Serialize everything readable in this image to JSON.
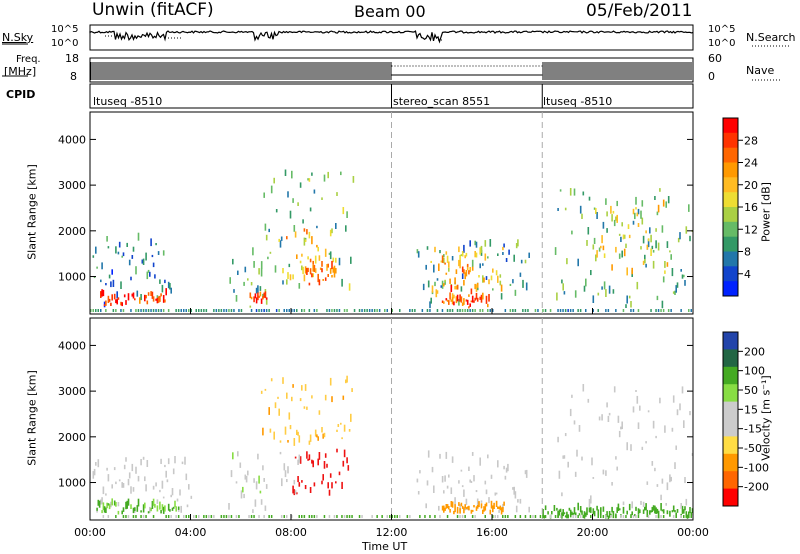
{
  "header": {
    "station": "Unwin (fitACF)",
    "beam": "Beam 00",
    "date": "05/Feb/2011"
  },
  "top_panel": {
    "nsky_label": "N.Sky",
    "nsky_ticks": [
      "10^5",
      "10^0"
    ],
    "nsearch_label": "N.Search",
    "nsearch_ticks": [
      "10^5",
      "10^0"
    ],
    "freq_label": "Freq.",
    "freq_unit": "[MHz]",
    "freq_ticks": [
      "18",
      "8"
    ],
    "nave_label": "Nave",
    "nave_ticks": [
      "60",
      "0"
    ],
    "cpid_label": "CPID",
    "cpid_segments": [
      {
        "label": "ltuseq -8510",
        "start_hour": 0,
        "end_hour": 12
      },
      {
        "label": "stereo_scan 8551",
        "start_hour": 12,
        "end_hour": 18
      },
      {
        "label": "ltuseq -8510",
        "start_hour": 18,
        "end_hour": 24
      }
    ]
  },
  "axes": {
    "xlabel": "Time UT",
    "xticks": [
      "00:00",
      "04:00",
      "08:00",
      "12:00",
      "16:00",
      "20:00",
      "00:00"
    ],
    "ylabel_power": "Slant Range [km]",
    "ylabel_velocity": "Slant Range [km]",
    "yticks": [
      "4000",
      "3000",
      "2000",
      "1000"
    ]
  },
  "colorbars": {
    "power": {
      "title": "Power [dB]",
      "ticks": [
        "28",
        "24",
        "20",
        "16",
        "12",
        "8",
        "4"
      ],
      "colors": [
        "#ff0000",
        "#ff3300",
        "#ff6600",
        "#ff9900",
        "#ffbb22",
        "#eedd33",
        "#aad044",
        "#66bb66",
        "#339966",
        "#2277aa",
        "#1144cc",
        "#0022ff"
      ]
    },
    "velocity": {
      "title": "Velocity [m s⁻¹]",
      "ticks": [
        "200",
        "100",
        "50",
        "15",
        "-15",
        "-50",
        "-100",
        "-200"
      ],
      "colors": [
        "#2244aa",
        "#226644",
        "#44aa22",
        "#88dd44",
        "#cccccc",
        "#cccccc",
        "#ffdd44",
        "#ff9900",
        "#ff6600",
        "#ff0000"
      ]
    }
  },
  "chart_data": [
    {
      "type": "heatmap",
      "title": "Power [dB]",
      "xlabel": "Time UT",
      "ylabel": "Slant Range [km]",
      "x_range_hours": [
        0,
        24
      ],
      "ylim": [
        180,
        4600
      ],
      "regions": [
        {
          "t0": 0.1,
          "t1": 3.3,
          "r0": 300,
          "r1": 1800,
          "p": 6
        },
        {
          "t0": 0.4,
          "t1": 3.0,
          "r0": 350,
          "r1": 600,
          "p": 28
        },
        {
          "t0": 5.5,
          "t1": 7.0,
          "r0": 300,
          "r1": 1500,
          "p": 9
        },
        {
          "t0": 6.3,
          "t1": 7.0,
          "r0": 400,
          "r1": 600,
          "p": 27
        },
        {
          "t0": 6.8,
          "t1": 10.5,
          "r0": 600,
          "r1": 3300,
          "p": 11
        },
        {
          "t0": 7.5,
          "t1": 9.8,
          "r0": 900,
          "r1": 2000,
          "p": 20
        },
        {
          "t0": 8.5,
          "t1": 9.8,
          "r0": 800,
          "r1": 1200,
          "p": 24
        },
        {
          "t0": 13.0,
          "t1": 17.5,
          "r0": 300,
          "r1": 1700,
          "p": 8
        },
        {
          "t0": 13.5,
          "t1": 16.5,
          "r0": 500,
          "r1": 1600,
          "p": 18
        },
        {
          "t0": 14.0,
          "t1": 15.5,
          "r0": 600,
          "r1": 1300,
          "p": 24
        },
        {
          "t0": 14.0,
          "t1": 16.0,
          "r0": 300,
          "r1": 500,
          "p": 26
        },
        {
          "t0": 18.5,
          "t1": 24.0,
          "r0": 300,
          "r1": 2900,
          "p": 10
        },
        {
          "t0": 20.0,
          "t1": 23.0,
          "r0": 1000,
          "r1": 2600,
          "p": 16
        }
      ]
    },
    {
      "type": "heatmap",
      "title": "Velocity [m s⁻¹]",
      "xlabel": "Time UT",
      "ylabel": "Slant Range [km]",
      "x_range_hours": [
        0,
        24
      ],
      "ylim": [
        180,
        4600
      ],
      "regions": [
        {
          "t0": 0.1,
          "t1": 4.0,
          "r0": 300,
          "r1": 1500,
          "v": 0
        },
        {
          "t0": 0.2,
          "t1": 3.5,
          "r0": 300,
          "r1": 500,
          "v": 30
        },
        {
          "t0": 5.5,
          "t1": 7.0,
          "r0": 300,
          "r1": 1600,
          "v": 5
        },
        {
          "t0": 6.8,
          "t1": 10.5,
          "r0": 1800,
          "r1": 3300,
          "v": -40
        },
        {
          "t0": 8.0,
          "t1": 10.3,
          "r0": 700,
          "r1": 1700,
          "v": -200
        },
        {
          "t0": 7.5,
          "t1": 8.5,
          "r0": 700,
          "r1": 1700,
          "v": 0
        },
        {
          "t0": 13.0,
          "t1": 17.5,
          "r0": 300,
          "r1": 1600,
          "v": 0
        },
        {
          "t0": 14.0,
          "t1": 16.5,
          "r0": 300,
          "r1": 500,
          "v": -80
        },
        {
          "t0": 18.0,
          "t1": 24.0,
          "r0": 200,
          "r1": 400,
          "v": 60
        },
        {
          "t0": 18.5,
          "t1": 24.0,
          "r0": 400,
          "r1": 3000,
          "v": 0
        }
      ]
    }
  ]
}
